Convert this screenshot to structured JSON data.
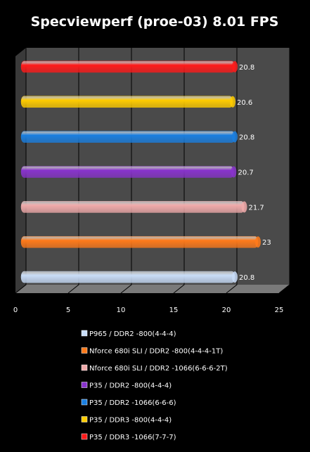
{
  "chart_data": {
    "type": "bar",
    "orientation": "horizontal",
    "title": "Specviewperf (proe-03) 8.01 FPS",
    "xlim": [
      0,
      25
    ],
    "ticks": [
      0,
      5,
      10,
      15,
      20,
      25
    ],
    "grid": true,
    "legend_position": "bottom",
    "series": [
      {
        "name": "P35 / DDR3 -1066(7-7-7)",
        "value": 20.8,
        "label": "20.8",
        "color": "#ff1a1a"
      },
      {
        "name": "P35 / DDR3 -800(4-4-4)",
        "value": 20.6,
        "label": "20.6",
        "color": "#ffcc00"
      },
      {
        "name": "P35 / DDR2 -1066(6-6-6)",
        "value": 20.8,
        "label": "20.8",
        "color": "#1a7fe0"
      },
      {
        "name": "P35 / DDR2 -800(4-4-4)",
        "value": 20.7,
        "label": "20.7",
        "color": "#8833cc"
      },
      {
        "name": "Nforce 680i SLI / DDR2 -1066(6-6-6-2T)",
        "value": 21.7,
        "label": "21.7",
        "color": "#f0aaaa"
      },
      {
        "name": "Nforce 680i SLI / DDR2 -800(4-4-4-1T)",
        "value": 23,
        "label": "23",
        "color": "#ff7a1a"
      },
      {
        "name": "P965 / DDR2 -800(4-4-4)",
        "value": 20.8,
        "label": "20.8",
        "color": "#c8dcf8"
      }
    ]
  }
}
